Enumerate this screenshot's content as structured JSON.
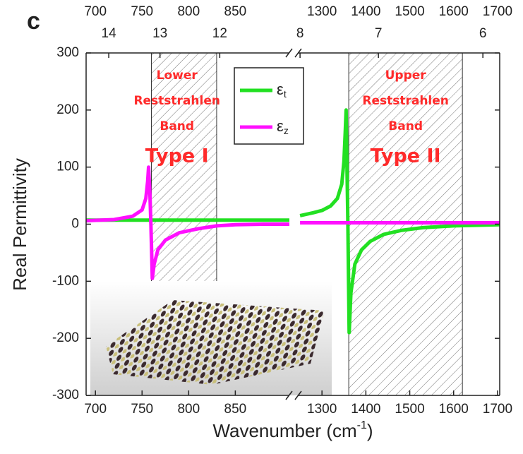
{
  "chart_data": {
    "type": "line",
    "panel": "c",
    "xlabel": "Wavenumber (cm",
    "xlabel_sup": "-1",
    "xlabel_end": ")",
    "ylabel": "Real Permittivity",
    "xlim": [
      [
        690,
        908
      ],
      [
        1245,
        1705
      ]
    ],
    "xticks": [
      700,
      750,
      800,
      850,
      1300,
      1400,
      1500,
      1600,
      1700
    ],
    "x2ticks": [
      14,
      13,
      12,
      8,
      7,
      6
    ],
    "ylim": [
      -300,
      300
    ],
    "yticks": [
      300,
      200,
      100,
      0,
      -100,
      -200,
      -300
    ],
    "bands": [
      {
        "lines": [
          "Lower",
          "Reststrahlen",
          "Band"
        ],
        "type": "Type I",
        "xlim": [
          760,
          830
        ]
      },
      {
        "lines": [
          "Upper",
          "Reststrahlen",
          "Band"
        ],
        "type": "Type II",
        "xlim": [
          1361,
          1620
        ]
      }
    ],
    "series": [
      {
        "name": "ε",
        "subscript": "t",
        "color": "#22e022",
        "x": [
          690,
          750,
          800,
          850,
          908,
          1250,
          1280,
          1300,
          1320,
          1335,
          1345,
          1350,
          1353,
          1355,
          1357,
          1359,
          1362,
          1366,
          1375,
          1390,
          1410,
          1440,
          1480,
          1530,
          1600,
          1705
        ],
        "values": [
          7,
          7,
          7,
          7,
          7,
          15,
          20,
          24,
          32,
          45,
          70,
          110,
          160,
          200,
          100,
          0,
          -190,
          -120,
          -70,
          -45,
          -30,
          -18,
          -11,
          -6,
          -3,
          -1
        ]
      },
      {
        "name": "ε",
        "subscript": "z",
        "color": "#ff10ff",
        "x": [
          690,
          720,
          740,
          750,
          754,
          756,
          757,
          758.5,
          759.5,
          761,
          763,
          767,
          775,
          790,
          810,
          830,
          850,
          880,
          908,
          1250,
          1400,
          1550,
          1705
        ],
        "values": [
          6,
          8,
          14,
          25,
          45,
          75,
          100,
          50,
          0,
          -95,
          -70,
          -45,
          -28,
          -15,
          -8,
          -3,
          -1,
          0,
          0,
          2.5,
          2.5,
          2.5,
          2.5
        ]
      }
    ]
  }
}
